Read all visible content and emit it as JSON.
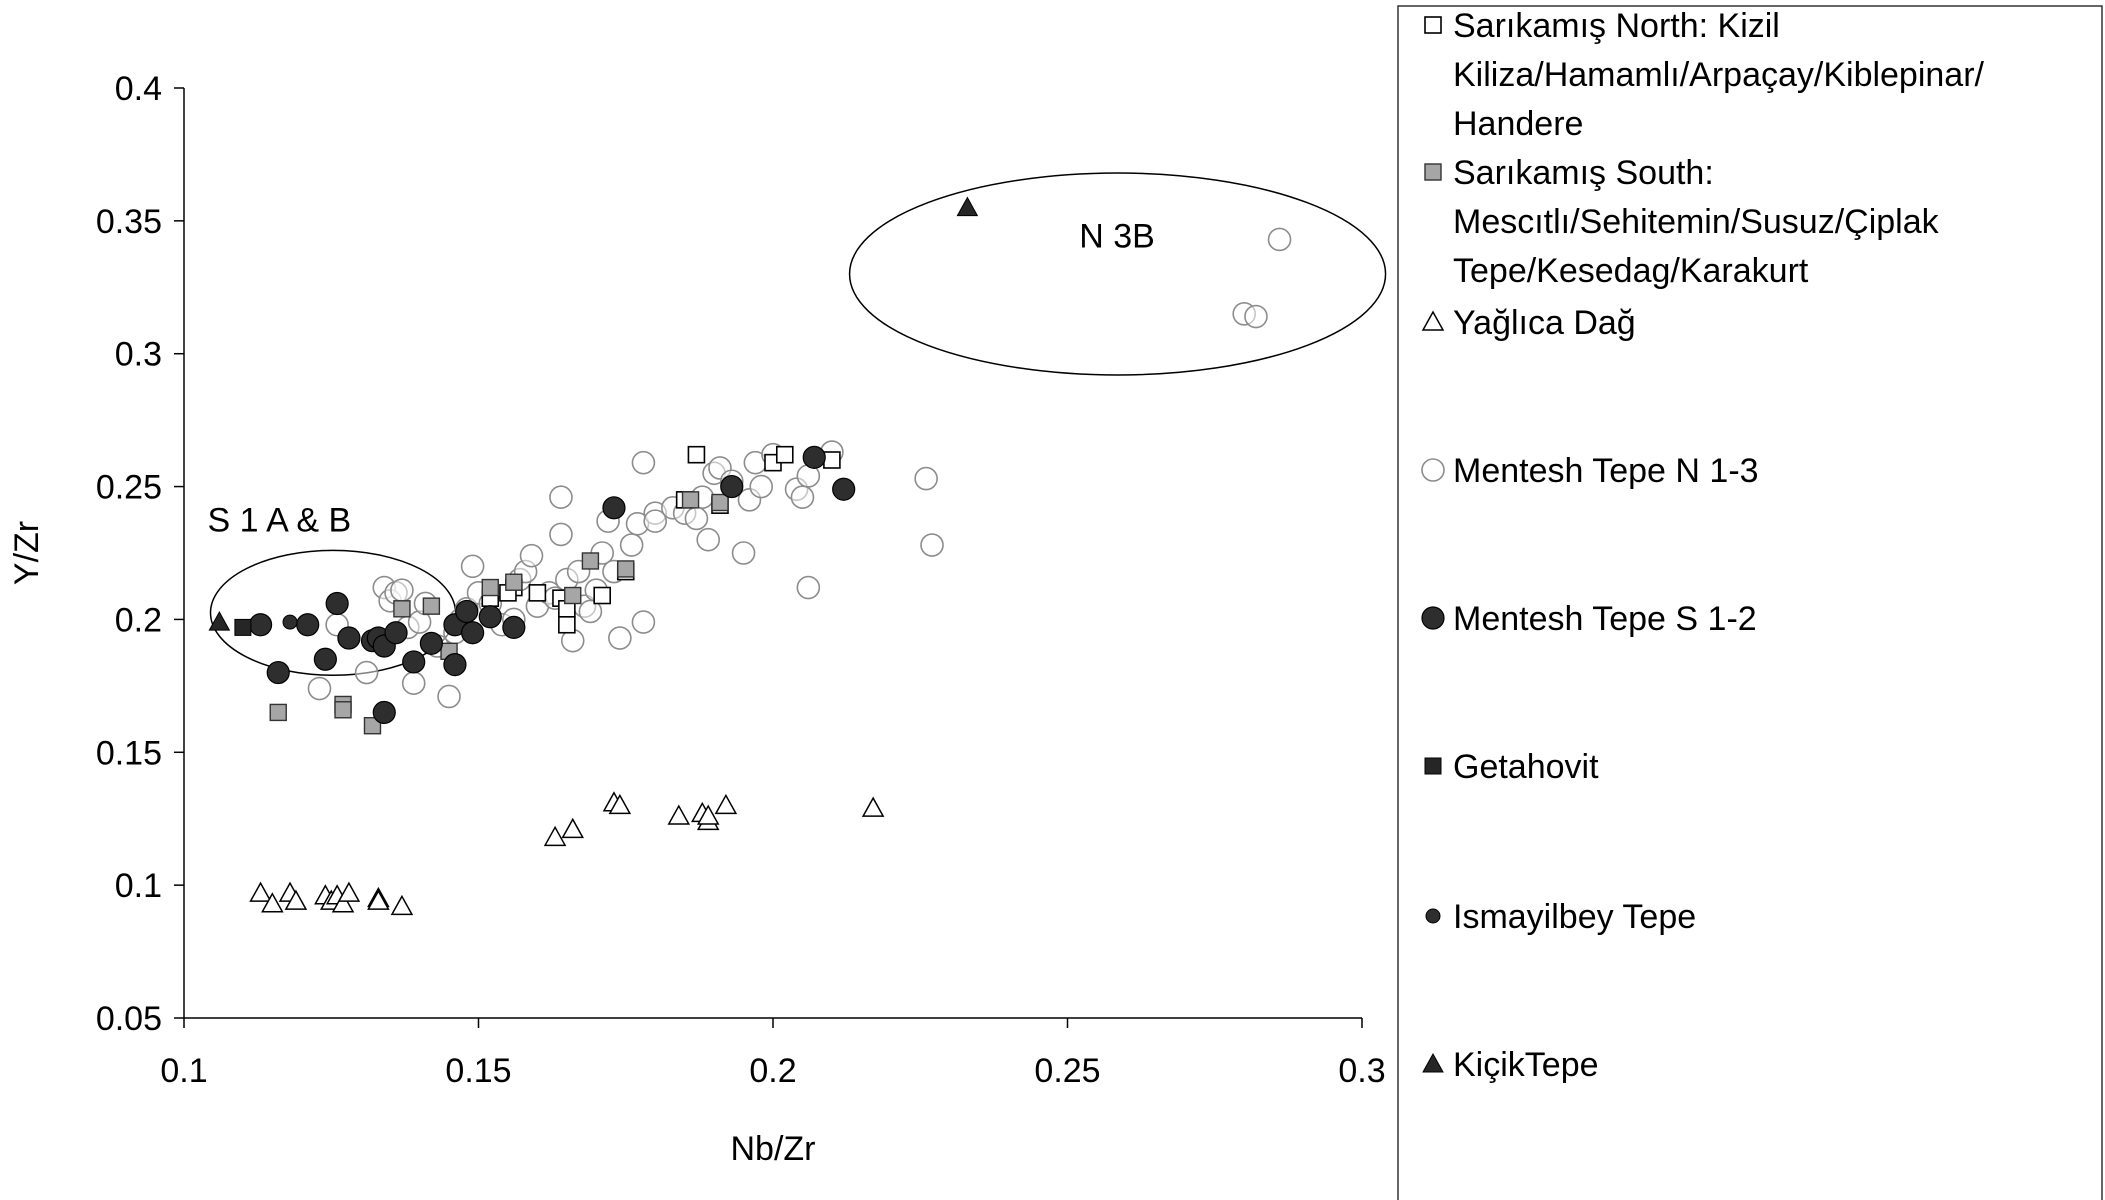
{
  "chart_data": {
    "type": "scatter",
    "xlabel": "Nb/Zr",
    "ylabel": "Y/Zr",
    "xlim": [
      0.1,
      0.3
    ],
    "ylim": [
      0.05,
      0.4
    ],
    "xticks": [
      0.1,
      0.15,
      0.2,
      0.25,
      0.3
    ],
    "yticks": [
      0.05,
      0.1,
      0.15,
      0.2,
      0.25,
      0.3,
      0.35,
      0.4
    ],
    "xtick_labels": [
      "0.1",
      "0.15",
      "0.2",
      "0.25",
      "0.3"
    ],
    "ytick_labels": [
      "0.05",
      "0.1",
      "0.15",
      "0.2",
      "0.25",
      "0.3",
      "0.35",
      "0.4"
    ],
    "grid": false,
    "legend_position": "right",
    "annotations": [
      {
        "text": "N 3B",
        "x": 0.252,
        "y": 0.34
      },
      {
        "text": "S 1 A & B",
        "x": 0.104,
        "y": 0.233
      }
    ],
    "ellipses": [
      {
        "cx": 0.2585,
        "cy": 0.33,
        "rx": 0.0455,
        "ry": 0.038
      },
      {
        "cx": 0.1253,
        "cy": 0.2025,
        "rx": 0.0208,
        "ry": 0.0235
      }
    ],
    "series": [
      {
        "name": "Sarıkamış North: Kizil Kiliza/Hamamlı/Arpaçay/Kiblepinar/Handere",
        "marker": "square-open",
        "points": [
          [
            0.187,
            0.262
          ],
          [
            0.2,
            0.259
          ],
          [
            0.202,
            0.262
          ],
          [
            0.21,
            0.26
          ],
          [
            0.185,
            0.245
          ],
          [
            0.191,
            0.243
          ],
          [
            0.165,
            0.198
          ],
          [
            0.171,
            0.209
          ],
          [
            0.164,
            0.208
          ],
          [
            0.165,
            0.204
          ],
          [
            0.175,
            0.218
          ],
          [
            0.16,
            0.21
          ],
          [
            0.156,
            0.212
          ],
          [
            0.155,
            0.21
          ],
          [
            0.152,
            0.208
          ]
        ]
      },
      {
        "name": "Sarıkamış South: Mescıtlı/Sehitemin/Susuz/Çiplak Tepe/Kesedag/Karakurt",
        "marker": "square-gray",
        "points": [
          [
            0.116,
            0.165
          ],
          [
            0.127,
            0.168
          ],
          [
            0.127,
            0.166
          ],
          [
            0.132,
            0.16
          ],
          [
            0.137,
            0.204
          ],
          [
            0.142,
            0.205
          ],
          [
            0.145,
            0.188
          ],
          [
            0.152,
            0.212
          ],
          [
            0.156,
            0.214
          ],
          [
            0.166,
            0.209
          ],
          [
            0.169,
            0.222
          ],
          [
            0.175,
            0.219
          ],
          [
            0.186,
            0.245
          ],
          [
            0.191,
            0.244
          ]
        ]
      },
      {
        "name": "Yağlıca Dağ",
        "marker": "triangle-open",
        "points": [
          [
            0.113,
            0.097
          ],
          [
            0.115,
            0.093
          ],
          [
            0.118,
            0.097
          ],
          [
            0.119,
            0.094
          ],
          [
            0.124,
            0.096
          ],
          [
            0.125,
            0.094
          ],
          [
            0.126,
            0.096
          ],
          [
            0.127,
            0.093
          ],
          [
            0.128,
            0.097
          ],
          [
            0.133,
            0.095
          ],
          [
            0.133,
            0.094
          ],
          [
            0.137,
            0.092
          ],
          [
            0.163,
            0.118
          ],
          [
            0.166,
            0.121
          ],
          [
            0.173,
            0.131
          ],
          [
            0.174,
            0.13
          ],
          [
            0.184,
            0.126
          ],
          [
            0.188,
            0.127
          ],
          [
            0.189,
            0.124
          ],
          [
            0.189,
            0.126
          ],
          [
            0.192,
            0.13
          ],
          [
            0.217,
            0.129
          ]
        ]
      },
      {
        "name": "Mentesh Tepe N 1-3",
        "marker": "circle-open",
        "points": [
          [
            0.286,
            0.343
          ],
          [
            0.28,
            0.315
          ],
          [
            0.282,
            0.314
          ],
          [
            0.123,
            0.174
          ],
          [
            0.126,
            0.198
          ],
          [
            0.131,
            0.18
          ],
          [
            0.134,
            0.212
          ],
          [
            0.135,
            0.207
          ],
          [
            0.136,
            0.21
          ],
          [
            0.137,
            0.211
          ],
          [
            0.138,
            0.197
          ],
          [
            0.139,
            0.176
          ],
          [
            0.14,
            0.199
          ],
          [
            0.141,
            0.206
          ],
          [
            0.143,
            0.19
          ],
          [
            0.145,
            0.171
          ],
          [
            0.146,
            0.195
          ],
          [
            0.147,
            0.2
          ],
          [
            0.148,
            0.204
          ],
          [
            0.149,
            0.22
          ],
          [
            0.15,
            0.21
          ],
          [
            0.152,
            0.206
          ],
          [
            0.154,
            0.198
          ],
          [
            0.156,
            0.2
          ],
          [
            0.157,
            0.215
          ],
          [
            0.158,
            0.218
          ],
          [
            0.159,
            0.224
          ],
          [
            0.16,
            0.205
          ],
          [
            0.162,
            0.21
          ],
          [
            0.163,
            0.208
          ],
          [
            0.164,
            0.246
          ],
          [
            0.164,
            0.232
          ],
          [
            0.165,
            0.215
          ],
          [
            0.166,
            0.192
          ],
          [
            0.167,
            0.218
          ],
          [
            0.168,
            0.205
          ],
          [
            0.169,
            0.203
          ],
          [
            0.17,
            0.211
          ],
          [
            0.171,
            0.225
          ],
          [
            0.172,
            0.237
          ],
          [
            0.173,
            0.218
          ],
          [
            0.174,
            0.193
          ],
          [
            0.176,
            0.228
          ],
          [
            0.177,
            0.236
          ],
          [
            0.178,
            0.259
          ],
          [
            0.178,
            0.199
          ],
          [
            0.18,
            0.24
          ],
          [
            0.18,
            0.237
          ],
          [
            0.183,
            0.242
          ],
          [
            0.185,
            0.24
          ],
          [
            0.187,
            0.238
          ],
          [
            0.188,
            0.246
          ],
          [
            0.189,
            0.23
          ],
          [
            0.19,
            0.255
          ],
          [
            0.191,
            0.257
          ],
          [
            0.193,
            0.252
          ],
          [
            0.195,
            0.225
          ],
          [
            0.196,
            0.245
          ],
          [
            0.197,
            0.259
          ],
          [
            0.198,
            0.25
          ],
          [
            0.2,
            0.262
          ],
          [
            0.204,
            0.249
          ],
          [
            0.205,
            0.246
          ],
          [
            0.206,
            0.254
          ],
          [
            0.206,
            0.212
          ],
          [
            0.21,
            0.263
          ],
          [
            0.226,
            0.253
          ],
          [
            0.227,
            0.228
          ]
        ]
      },
      {
        "name": "Mentesh Tepe S 1-2",
        "marker": "circle-dark",
        "points": [
          [
            0.113,
            0.198
          ],
          [
            0.116,
            0.18
          ],
          [
            0.121,
            0.198
          ],
          [
            0.124,
            0.185
          ],
          [
            0.126,
            0.206
          ],
          [
            0.128,
            0.193
          ],
          [
            0.132,
            0.192
          ],
          [
            0.133,
            0.193
          ],
          [
            0.134,
            0.19
          ],
          [
            0.134,
            0.165
          ],
          [
            0.136,
            0.195
          ],
          [
            0.139,
            0.184
          ],
          [
            0.142,
            0.191
          ],
          [
            0.146,
            0.198
          ],
          [
            0.146,
            0.183
          ],
          [
            0.148,
            0.203
          ],
          [
            0.149,
            0.195
          ],
          [
            0.152,
            0.201
          ],
          [
            0.156,
            0.197
          ],
          [
            0.173,
            0.242
          ],
          [
            0.193,
            0.25
          ],
          [
            0.207,
            0.261
          ],
          [
            0.212,
            0.249
          ]
        ]
      },
      {
        "name": "Getahovit",
        "marker": "square-dark",
        "points": [
          [
            0.11,
            0.197
          ]
        ]
      },
      {
        "name": "Ismayilbey Tepe",
        "marker": "dot-dark",
        "points": [
          [
            0.118,
            0.199
          ]
        ]
      },
      {
        "name": "KiçikTepe",
        "marker": "triangle-dark",
        "points": [
          [
            0.106,
            0.199
          ],
          [
            0.233,
            0.355
          ]
        ]
      }
    ]
  }
}
